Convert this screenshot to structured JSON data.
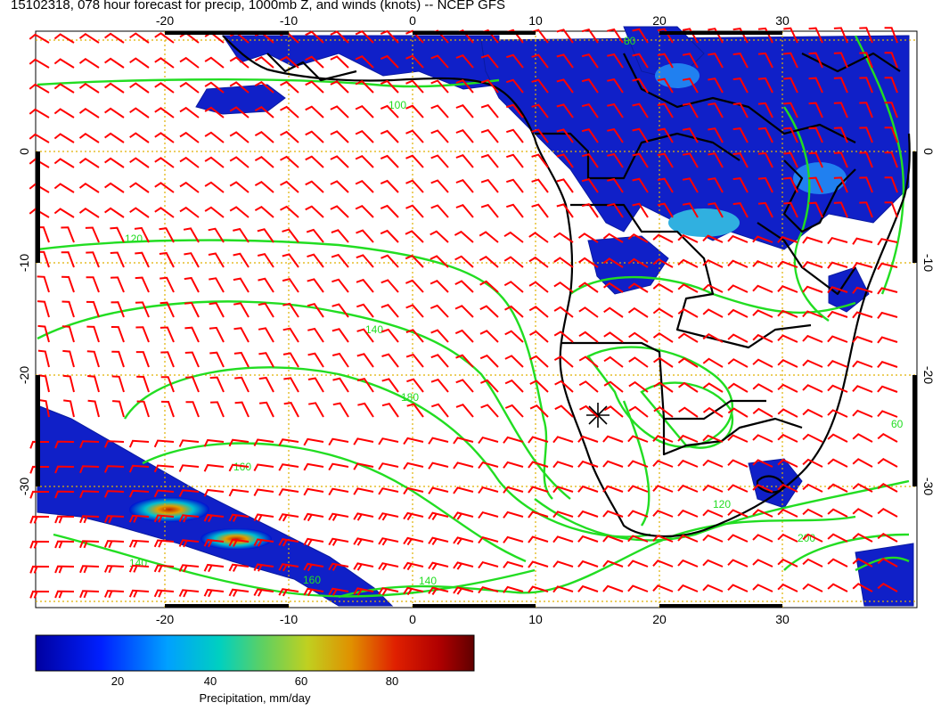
{
  "title": "15102318, 078 hour forecast for precip, 1000mb Z, and winds (knots) -- NCEP GFS",
  "map": {
    "lon_ticks": [
      "-20",
      "-10",
      "0",
      "10",
      "20",
      "30"
    ],
    "lat_ticks": [
      "0",
      "-10",
      "-20",
      "-30"
    ],
    "lon_range": [
      -29.5,
      41
    ],
    "lat_range": [
      10,
      -40
    ],
    "contour_color": "#22dd22",
    "wind_barb_color": "#ff0000",
    "coast_color": "#000000",
    "grid_color": "#e0b000",
    "contour_labels": [
      "120",
      "140",
      "160",
      "180",
      "200",
      "100",
      "60",
      "80"
    ]
  },
  "colorbar": {
    "title": "Precipitation, mm/day",
    "ticks": [
      "20",
      "40",
      "60",
      "80"
    ],
    "range": [
      0,
      100
    ],
    "colors": [
      "#0000a0",
      "#0010f0",
      "#0080ff",
      "#00d0d0",
      "#40d080",
      "#c0d020",
      "#e09000",
      "#e03000",
      "#c00000",
      "#600000"
    ]
  }
}
